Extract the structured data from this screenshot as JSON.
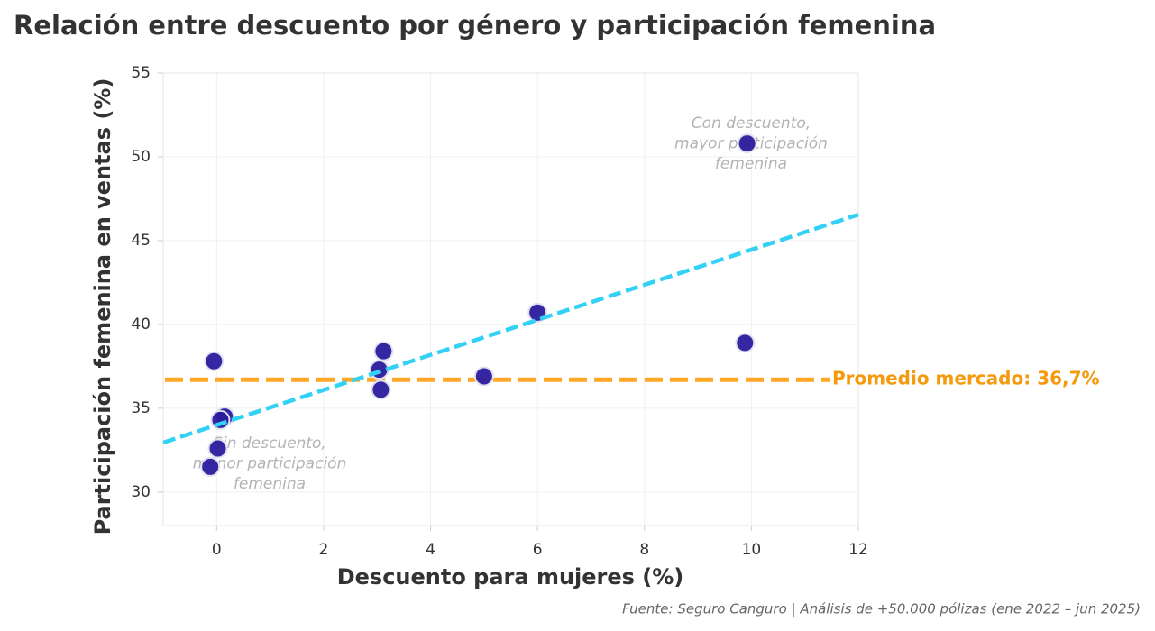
{
  "chart_data": {
    "type": "scatter",
    "title": "Relación entre descuento por género y participación femenina",
    "x_label": "Descuento para mujeres (%)",
    "y_label": "Participación femenina en ventas (%)",
    "x": [
      -0.05,
      0.15,
      0.07,
      0.02,
      -0.12,
      3.12,
      3.04,
      3.07,
      5.0,
      6.0,
      9.88,
      9.92
    ],
    "values": [
      37.8,
      34.5,
      34.3,
      32.6,
      31.5,
      38.4,
      37.3,
      36.1,
      36.9,
      40.7,
      38.9,
      50.8
    ],
    "color": "#2a1b9c",
    "trend_line": {
      "x": [
        -1,
        12
      ],
      "values": [
        32.95,
        46.55
      ],
      "color": "#33d1f5"
    },
    "reference_line": {
      "value": 36.7,
      "label": "Promedio mercado: 36,7%",
      "color": "#ffa726",
      "label_color": "#f59a0c"
    },
    "annotations": [
      {
        "lines": [
          "Con descuento,",
          "mayor participación",
          "femenina"
        ]
      },
      {
        "lines": [
          "Sin descuento,",
          "menor participación",
          "femenina"
        ]
      }
    ],
    "xlim": [
      -1,
      12
    ],
    "ylim": [
      28,
      55
    ],
    "xticks": [
      0,
      2,
      4,
      6,
      8,
      10,
      12
    ],
    "yticks": [
      30,
      35,
      40,
      45,
      50,
      55
    ],
    "grid": true,
    "source": "Fuente: Seguro Canguro | Análisis de +50.000 pólizas (ene 2022 – jun 2025)"
  }
}
